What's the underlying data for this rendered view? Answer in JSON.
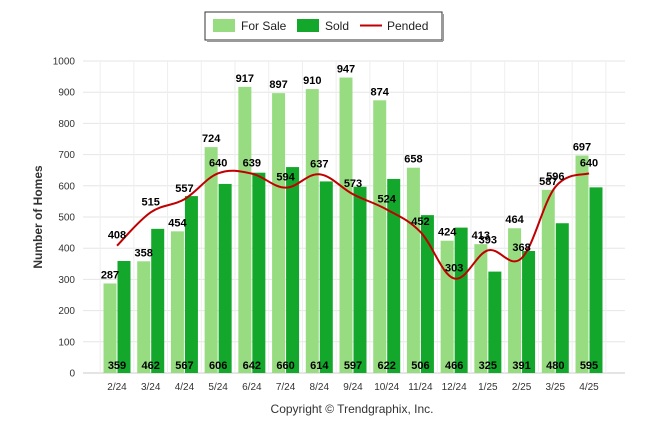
{
  "chart_data": {
    "type": "bar",
    "categories": [
      "2/24",
      "3/24",
      "4/24",
      "5/24",
      "6/24",
      "7/24",
      "8/24",
      "9/24",
      "10/24",
      "11/24",
      "12/24",
      "1/25",
      "2/25",
      "3/25",
      "4/25"
    ],
    "series": [
      {
        "name": "For Sale",
        "type": "bar",
        "color": "#98dc82",
        "values": [
          287,
          358,
          454,
          724,
          917,
          897,
          910,
          947,
          874,
          658,
          424,
          413,
          464,
          587,
          697
        ]
      },
      {
        "name": "Sold",
        "type": "bar",
        "color": "#13a82b",
        "values": [
          359,
          462,
          567,
          606,
          642,
          660,
          614,
          597,
          622,
          506,
          466,
          325,
          391,
          480,
          595
        ]
      },
      {
        "name": "Pended",
        "type": "line",
        "color": "#c00000",
        "values": [
          408,
          515,
          557,
          640,
          639,
          594,
          637,
          573,
          524,
          452,
          303,
          393,
          368,
          596,
          640
        ]
      }
    ],
    "xlabel": "",
    "ylabel": "Number of Homes",
    "ylim": [
      0,
      1000
    ],
    "yticks": [
      0,
      100,
      200,
      300,
      400,
      500,
      600,
      700,
      800,
      900,
      1000
    ],
    "grid": true,
    "legend_position": "top-center",
    "credit": "Copyright © Trendgraphix, Inc."
  }
}
